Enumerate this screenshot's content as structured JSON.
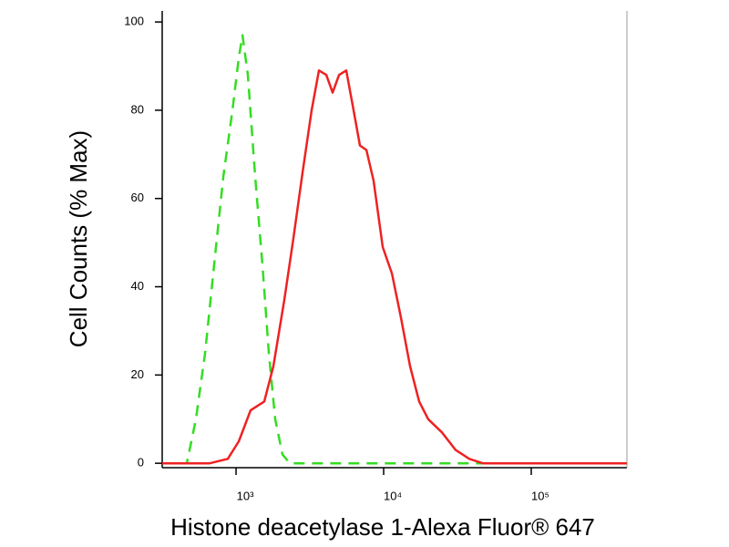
{
  "chart_data": {
    "type": "line",
    "x_label": "Histone deacetylase 1-Alexa Fluor® 647",
    "y_label": "Cell Counts (% Max)",
    "xscale": "log",
    "xlim": [
      316,
      445000
    ],
    "xticks": [
      {
        "value": 1000,
        "label": "10³"
      },
      {
        "value": 10000,
        "label": "10⁴"
      },
      {
        "value": 100000,
        "label": "10⁵"
      }
    ],
    "ylim": [
      -1,
      102.5
    ],
    "yticks": [
      0,
      20,
      40,
      60,
      80,
      100
    ],
    "series": [
      {
        "color": "#33dd22",
        "line_style": "dashed",
        "x": [
          316,
          464,
          535,
          617,
          711,
          820,
          945,
          1044,
          1105,
          1203,
          1348,
          1510,
          1668,
          1843,
          2064,
          2314,
          445000
        ],
        "values": [
          0,
          0,
          10,
          25,
          45,
          65,
          80,
          92,
          97,
          88,
          65,
          45,
          25,
          10,
          2,
          0,
          0
        ]
      },
      {
        "color": "#ee2222",
        "line_style": "solid",
        "x": [
          316,
          662,
          880,
          1044,
          1255,
          1553,
          1791,
          2122,
          2449,
          2825,
          3254,
          3646,
          4086,
          4510,
          4989,
          5585,
          6256,
          6913,
          7641,
          8556,
          9862,
          11373,
          13104,
          15110,
          17418,
          20050,
          24820,
          30740,
          38040,
          47100,
          444600
        ],
        "values": [
          0,
          0,
          1,
          5,
          12,
          14,
          22,
          37,
          51,
          66,
          80,
          89,
          88,
          84,
          88,
          89,
          80,
          72,
          71,
          64,
          49,
          43,
          33,
          22,
          14,
          10,
          7,
          3,
          1,
          0,
          0
        ]
      }
    ]
  }
}
